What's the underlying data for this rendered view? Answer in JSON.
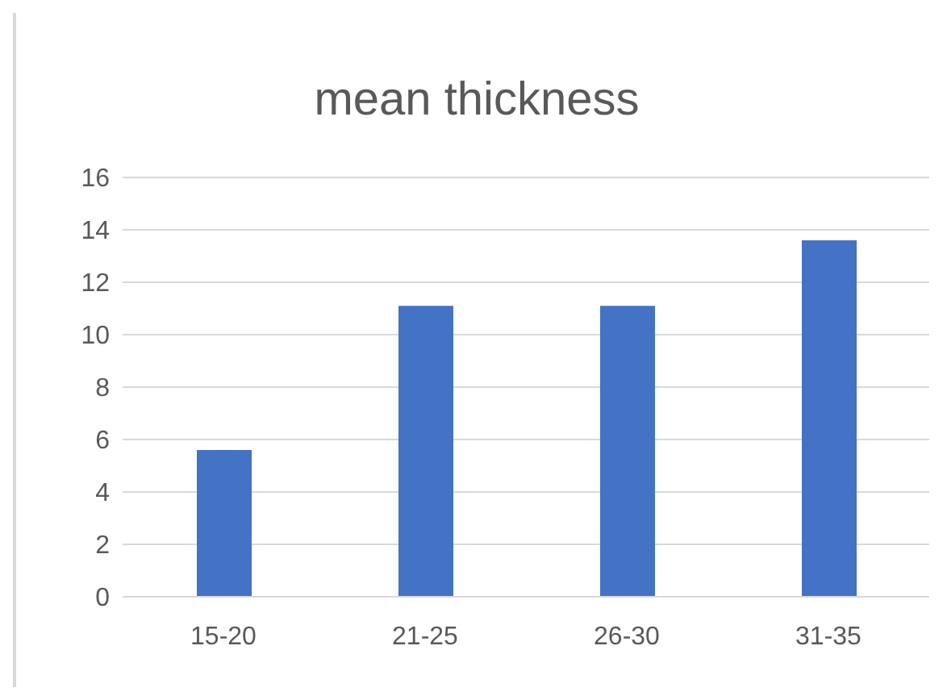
{
  "chart_data": {
    "type": "bar",
    "title": "mean thickness",
    "categories": [
      "15-20",
      "21-25",
      "26-30",
      "31-35"
    ],
    "values": [
      5.6,
      11.1,
      11.1,
      13.6
    ],
    "color": "#4472c4",
    "ylim": [
      0,
      16
    ],
    "yticks": [
      0,
      2,
      4,
      6,
      8,
      10,
      12,
      14,
      16
    ],
    "grid": "y"
  }
}
